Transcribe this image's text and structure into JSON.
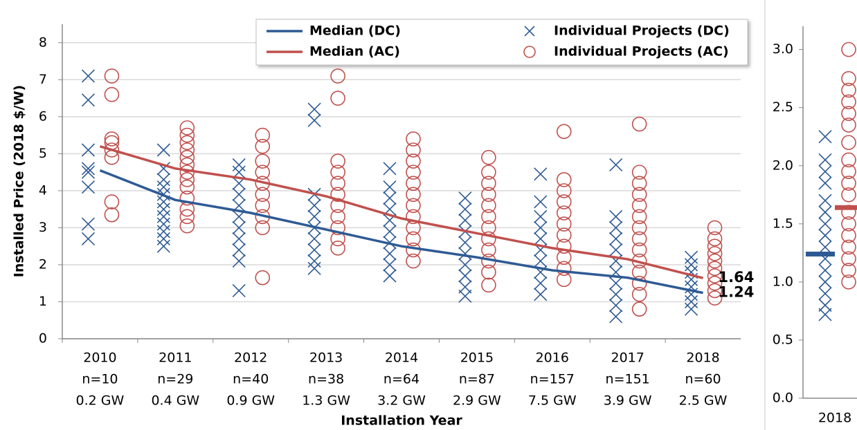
{
  "chart_data": [
    {
      "type": "line",
      "ylabel": "Installed Price (2018 $/W)",
      "xlabel": "Installation Year",
      "categories": [
        "2010",
        "2011",
        "2012",
        "2013",
        "2014",
        "2015",
        "2016",
        "2017",
        "2018"
      ],
      "count_labels": [
        "n=10",
        "n=29",
        "n=40",
        "n=38",
        "n=64",
        "n=87",
        "n=157",
        "n=151",
        "n=60"
      ],
      "capacity_labels": [
        "0.2 GW",
        "0.4 GW",
        "0.9 GW",
        "1.3 GW",
        "3.2 GW",
        "2.9 GW",
        "7.5 GW",
        "3.9 GW",
        "2.5 GW"
      ],
      "ylim": [
        0,
        8.5
      ],
      "yticks": [
        0,
        1,
        2,
        3,
        4,
        5,
        6,
        7,
        8
      ],
      "grid": true,
      "series": [
        {
          "name": "Median (DC)",
          "color": "#2e5a94",
          "mark": "line",
          "values": [
            4.55,
            3.75,
            3.4,
            2.95,
            2.5,
            2.2,
            1.85,
            1.65,
            1.24
          ]
        },
        {
          "name": "Median (AC)",
          "color": "#c0504d",
          "mark": "line",
          "values": [
            5.2,
            4.6,
            4.3,
            3.85,
            3.25,
            2.85,
            2.45,
            2.15,
            1.64
          ]
        },
        {
          "name": "Individual Projects (DC)",
          "color": "#2e5a94",
          "mark": "x",
          "values": [
            [
              7.1,
              6.45,
              5.1,
              4.6,
              4.5,
              4.1,
              3.1,
              2.7
            ],
            [
              5.1,
              4.6,
              4.3,
              4.1,
              3.9,
              3.7,
              3.5,
              3.3,
              3.1,
              2.9,
              2.7,
              2.5
            ],
            [
              4.7,
              4.5,
              4.2,
              3.9,
              3.6,
              3.3,
              3.0,
              2.7,
              2.4,
              2.1,
              1.3
            ],
            [
              6.2,
              5.9,
              3.9,
              3.6,
              3.3,
              3.0,
              2.7,
              2.4,
              2.1,
              1.9
            ],
            [
              4.6,
              4.1,
              3.8,
              3.5,
              3.2,
              2.9,
              2.6,
              2.3,
              2.0,
              1.7
            ],
            [
              3.8,
              3.5,
              3.2,
              2.9,
              2.6,
              2.3,
              2.0,
              1.7,
              1.4,
              1.15
            ],
            [
              4.45,
              3.7,
              3.3,
              3.0,
              2.7,
              2.4,
              2.1,
              1.8,
              1.5,
              1.2
            ],
            [
              4.7,
              3.3,
              3.0,
              2.7,
              2.4,
              2.1,
              1.8,
              1.5,
              1.2,
              0.9,
              0.6
            ],
            [
              2.2,
              2.0,
              1.8,
              1.6,
              1.4,
              1.2,
              1.0,
              0.8
            ]
          ]
        },
        {
          "name": "Individual Projects (AC)",
          "color": "#c0504d",
          "mark": "circle",
          "values": [
            [
              7.1,
              6.6,
              5.4,
              5.3,
              5.1,
              4.9,
              3.7,
              3.35
            ],
            [
              5.7,
              5.5,
              5.3,
              5.1,
              4.9,
              4.7,
              4.5,
              4.3,
              4.1,
              3.8,
              3.5,
              3.3,
              3.05
            ],
            [
              5.5,
              5.2,
              4.8,
              4.5,
              4.2,
              3.9,
              3.6,
              3.3,
              3.0,
              1.65
            ],
            [
              7.1,
              6.5,
              4.8,
              4.5,
              4.2,
              3.9,
              3.6,
              3.3,
              3.0,
              2.7,
              2.45
            ],
            [
              5.4,
              5.1,
              4.8,
              4.5,
              4.2,
              3.9,
              3.6,
              3.3,
              3.0,
              2.7,
              2.4,
              2.1
            ],
            [
              4.9,
              4.5,
              4.2,
              3.9,
              3.6,
              3.3,
              3.0,
              2.7,
              2.4,
              2.1,
              1.8,
              1.45
            ],
            [
              5.6,
              4.3,
              4.0,
              3.7,
              3.4,
              3.1,
              2.8,
              2.5,
              2.2,
              1.9,
              1.6
            ],
            [
              5.8,
              4.5,
              4.2,
              3.9,
              3.6,
              3.3,
              3.0,
              2.7,
              2.4,
              2.1,
              1.8,
              1.5,
              1.2,
              0.8
            ],
            [
              3.0,
              2.7,
              2.5,
              2.3,
              2.1,
              1.9,
              1.7,
              1.5,
              1.3,
              1.1
            ]
          ]
        }
      ]
    },
    {
      "type": "inset",
      "categories": [
        "2018"
      ],
      "ylim": [
        0,
        3.2
      ],
      "yticks": [
        {
          "value": 0,
          "label": "0.0"
        },
        {
          "value": 0.5,
          "label": "0.5"
        },
        {
          "value": 1,
          "label": "1.0"
        },
        {
          "value": 1.5,
          "label": "1.5"
        },
        {
          "value": 2,
          "label": "2.0"
        },
        {
          "value": 2.5,
          "label": "2.5"
        },
        {
          "value": 3,
          "label": "3.0"
        }
      ],
      "grid": false,
      "series": [
        {
          "color": "#2e5a94",
          "mark": "median",
          "values": [
            1.24
          ]
        },
        {
          "color": "#c0504d",
          "mark": "median",
          "values": [
            1.64
          ]
        },
        {
          "color": "#2e5a94",
          "mark": "x",
          "values": [
            [
              2.25,
              2.05,
              1.95,
              1.85,
              1.7,
              1.6,
              1.5,
              1.4,
              1.3,
              1.2,
              1.1,
              1.0,
              0.9,
              0.8,
              0.72
            ]
          ]
        },
        {
          "color": "#c0504d",
          "mark": "circle",
          "values": [
            [
              3.0,
              2.75,
              2.65,
              2.55,
              2.45,
              2.35,
              2.2,
              2.05,
              1.95,
              1.85,
              1.75,
              1.6,
              1.5,
              1.4,
              1.3,
              1.2,
              1.1,
              1.0
            ]
          ]
        }
      ]
    }
  ]
}
